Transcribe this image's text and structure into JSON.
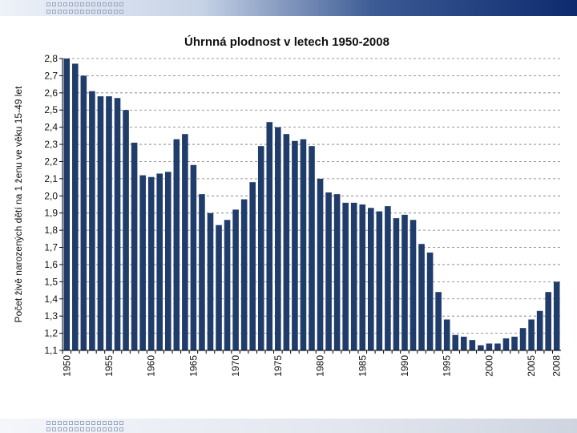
{
  "chart_data": {
    "type": "bar",
    "title": "Úhrnná plodnost v letech 1950-2008",
    "xlabel": "",
    "ylabel": "Počet živě narozených dětí na 1 ženu ve věku 15-49 let",
    "ylim": [
      1.1,
      2.8
    ],
    "yticks": [
      "1,1",
      "1,2",
      "1,3",
      "1,4",
      "1,5",
      "1,6",
      "1,7",
      "1,8",
      "1,9",
      "2,0",
      "2,1",
      "2,2",
      "2,3",
      "2,4",
      "2,5",
      "2,6",
      "2,7",
      "2,8"
    ],
    "xticks": [
      "1950",
      "1955",
      "1960",
      "1965",
      "1970",
      "1975",
      "1980",
      "1985",
      "1990",
      "1995",
      "2000",
      "2005",
      "2008"
    ],
    "grid": true,
    "bar_color": "#1f3c6b",
    "categories": [
      1950,
      1951,
      1952,
      1953,
      1954,
      1955,
      1956,
      1957,
      1958,
      1959,
      1960,
      1961,
      1962,
      1963,
      1964,
      1965,
      1966,
      1967,
      1968,
      1969,
      1970,
      1971,
      1972,
      1973,
      1974,
      1975,
      1976,
      1977,
      1978,
      1979,
      1980,
      1981,
      1982,
      1983,
      1984,
      1985,
      1986,
      1987,
      1988,
      1989,
      1990,
      1991,
      1992,
      1993,
      1994,
      1995,
      1996,
      1997,
      1998,
      1999,
      2000,
      2001,
      2002,
      2003,
      2004,
      2005,
      2006,
      2007,
      2008
    ],
    "values": [
      2.8,
      2.77,
      2.7,
      2.61,
      2.58,
      2.58,
      2.57,
      2.5,
      2.31,
      2.12,
      2.11,
      2.13,
      2.14,
      2.33,
      2.36,
      2.18,
      2.01,
      1.9,
      1.83,
      1.86,
      1.92,
      1.98,
      2.08,
      2.29,
      2.43,
      2.4,
      2.36,
      2.32,
      2.33,
      2.29,
      2.1,
      2.02,
      2.01,
      1.96,
      1.96,
      1.95,
      1.93,
      1.91,
      1.94,
      1.87,
      1.89,
      1.86,
      1.72,
      1.67,
      1.44,
      1.28,
      1.19,
      1.18,
      1.16,
      1.13,
      1.14,
      1.14,
      1.17,
      1.18,
      1.23,
      1.28,
      1.33,
      1.44,
      1.5
    ]
  }
}
